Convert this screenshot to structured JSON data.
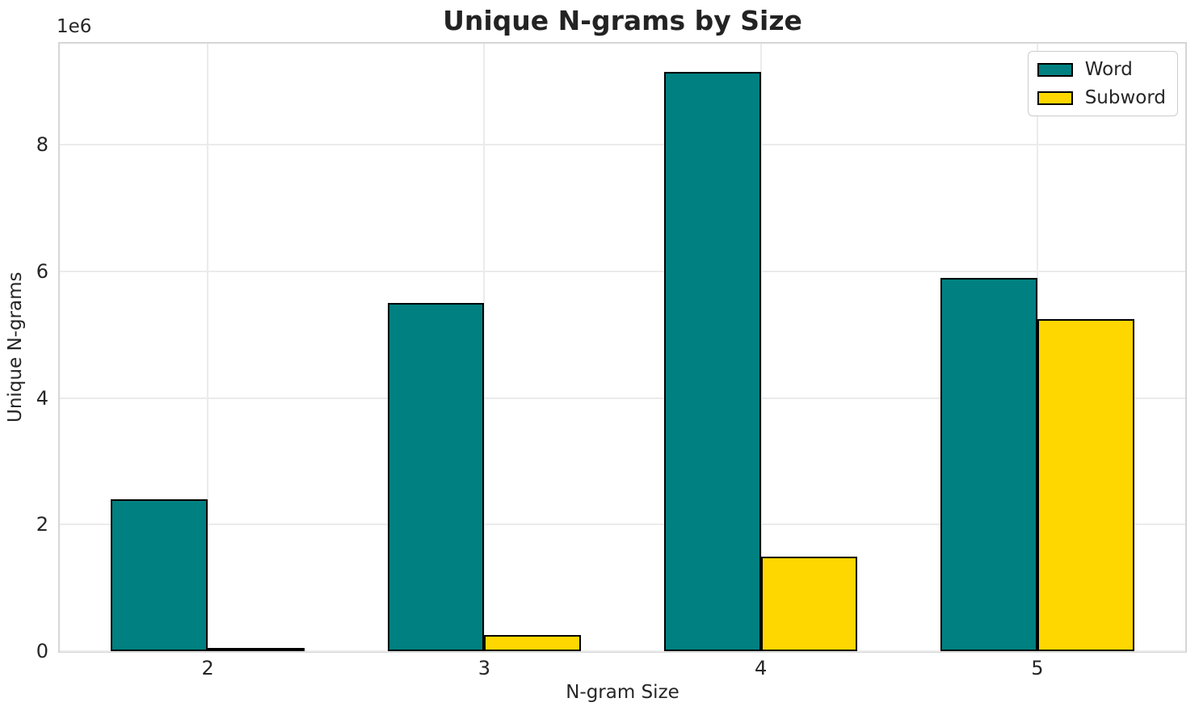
{
  "chart_data": {
    "type": "bar",
    "title": "Unique N-grams by Size",
    "xlabel": "N-gram Size",
    "ylabel": "Unique N-grams",
    "y_offset_label": "1e6",
    "categories": [
      "2",
      "3",
      "4",
      "5"
    ],
    "series": [
      {
        "name": "Word",
        "color": "#008080",
        "values": [
          2400000,
          5500000,
          9150000,
          5900000
        ]
      },
      {
        "name": "Subword",
        "color": "#FFD700",
        "values": [
          50000,
          250000,
          1500000,
          5250000
        ]
      }
    ],
    "bar_edge_color": "#000000",
    "bar_width": 0.35,
    "xlim": [
      -0.535,
      3.535
    ],
    "ylim": [
      0,
      9600000
    ],
    "y_ticks": [
      0,
      2000000,
      4000000,
      6000000,
      8000000
    ],
    "y_tick_labels": [
      "0",
      "2",
      "4",
      "6",
      "8"
    ],
    "grid": true,
    "legend_position": "upper right"
  }
}
